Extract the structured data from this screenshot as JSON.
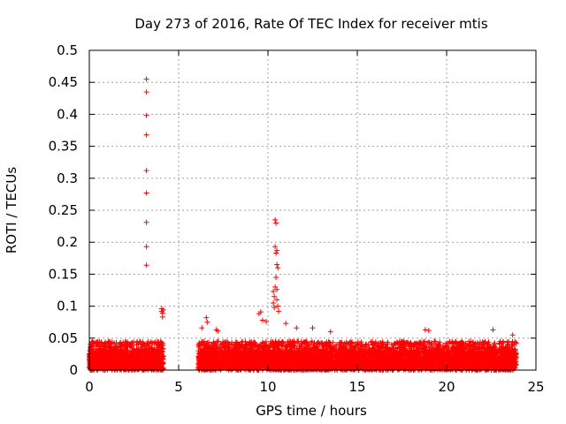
{
  "colors": {
    "series": "#ff0000",
    "grid": "#a0a0a0",
    "axis": "#000000"
  },
  "chart_data": {
    "type": "scatter",
    "title": "Day 273 of 2016, Rate Of TEC Index for receiver mtis",
    "xlabel": "GPS time / hours",
    "ylabel": "ROTI / TECUs",
    "xlim": [
      0,
      25
    ],
    "ylim": [
      0,
      0.5
    ],
    "x_ticks": [
      0,
      5,
      10,
      15,
      20,
      25
    ],
    "x_tick_labels": [
      "0",
      "5",
      "10",
      "15",
      "20",
      "25"
    ],
    "y_ticks": [
      0,
      0.05,
      0.1,
      0.15,
      0.2,
      0.25,
      0.3,
      0.35,
      0.4,
      0.45,
      0.5
    ],
    "y_tick_labels": [
      "0",
      "0.05",
      "0.1",
      "0.15",
      "0.2",
      "0.25",
      "0.3",
      "0.35",
      "0.4",
      "0.45",
      "0.5"
    ],
    "grid": true,
    "marker": "+",
    "data_gaps_hours": [
      [
        4.1,
        6.1
      ]
    ],
    "series": [
      {
        "name": "ROTI",
        "x": [
          3.2,
          3.2,
          3.2,
          3.2,
          3.2,
          3.2,
          3.2,
          3.2,
          3.2,
          4.05,
          4.05,
          4.1,
          4.15,
          4.1,
          6.3,
          6.55,
          6.6,
          7.1,
          7.2,
          9.5,
          9.6,
          9.7,
          9.9,
          10.3,
          10.35,
          10.4,
          10.45,
          10.4,
          10.5,
          10.45,
          10.5,
          10.55,
          10.45,
          10.4,
          10.5,
          10.3,
          10.35,
          10.5,
          10.55,
          10.6,
          11.0,
          11.6,
          12.5,
          13.5,
          18.8,
          19.0,
          22.6,
          23.7
        ],
        "y": [
          0.455,
          0.435,
          0.398,
          0.368,
          0.312,
          0.277,
          0.231,
          0.193,
          0.164,
          0.096,
          0.092,
          0.089,
          0.094,
          0.083,
          0.066,
          0.082,
          0.075,
          0.063,
          0.061,
          0.088,
          0.091,
          0.078,
          0.076,
          0.105,
          0.098,
          0.235,
          0.23,
          0.193,
          0.187,
          0.183,
          0.165,
          0.16,
          0.145,
          0.13,
          0.126,
          0.123,
          0.115,
          0.11,
          0.1,
          0.092,
          0.073,
          0.066,
          0.066,
          0.06,
          0.063,
          0.062,
          0.063,
          0.055
        ],
        "background_band": [
          {
            "x_start": 0.0,
            "x_end": 4.15,
            "y_typical_max": 0.045
          },
          {
            "x_start": 6.1,
            "x_end": 23.9,
            "y_typical_max": 0.045
          }
        ]
      }
    ]
  }
}
